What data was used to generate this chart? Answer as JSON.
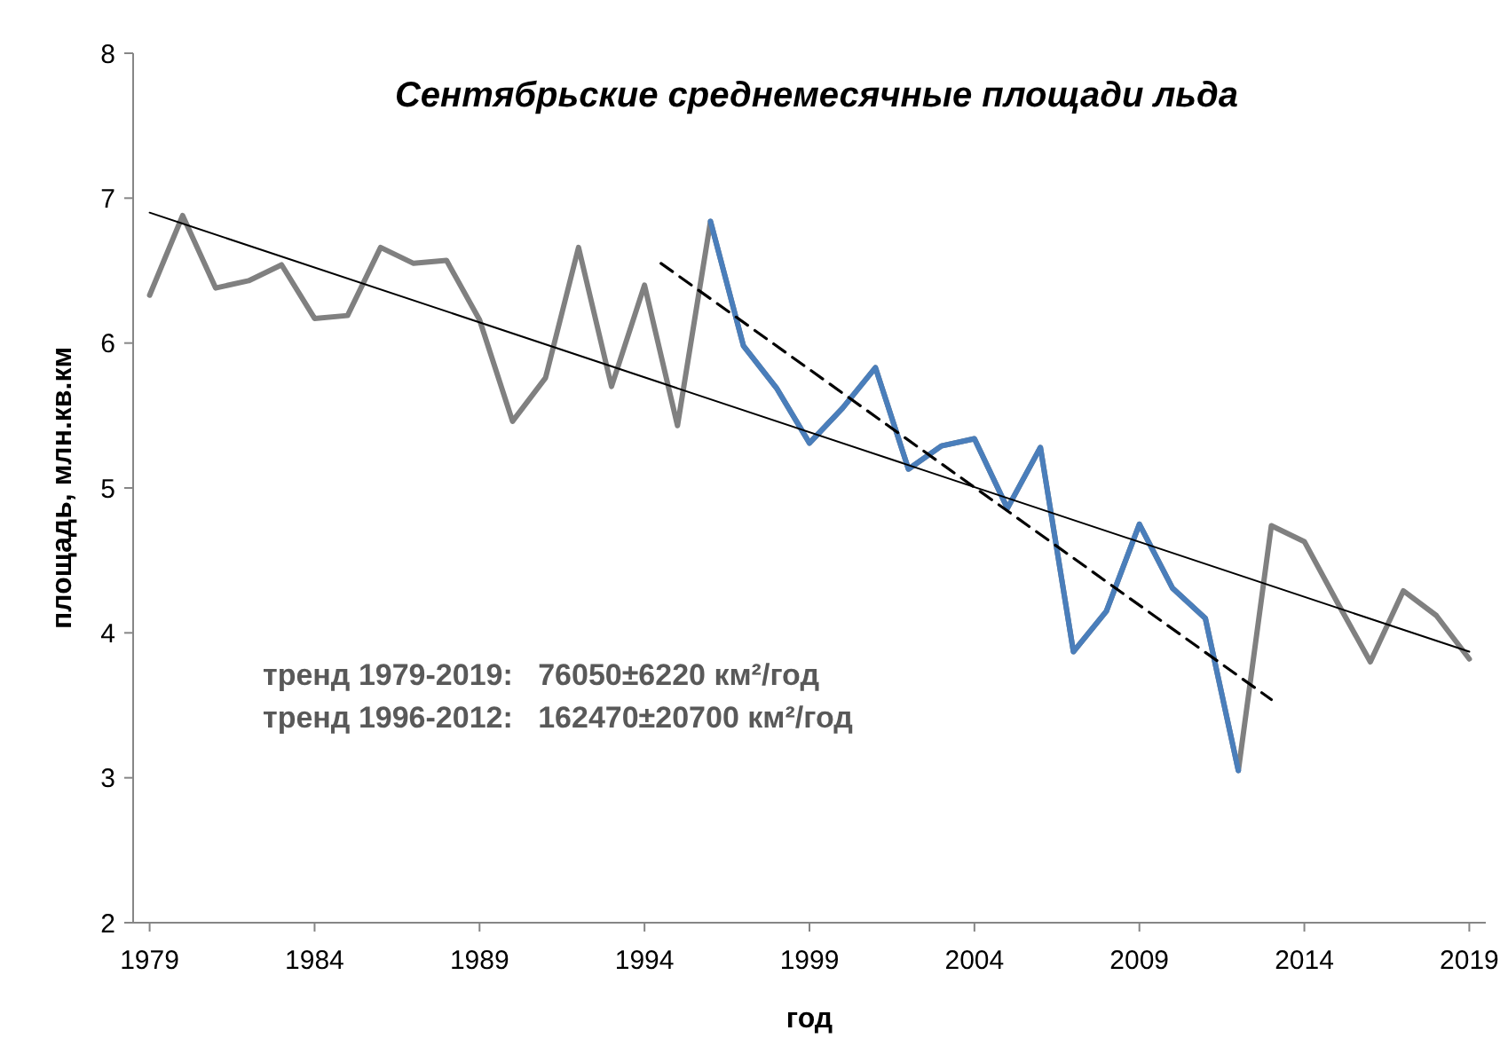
{
  "chart_data": {
    "type": "line",
    "title": "Сентябрьские среднемесячные площади льда",
    "xlabel": "год",
    "ylabel": "площадь, млн.кв.км",
    "x": [
      1979,
      1980,
      1981,
      1982,
      1983,
      1984,
      1985,
      1986,
      1987,
      1988,
      1989,
      1990,
      1991,
      1992,
      1993,
      1994,
      1995,
      1996,
      1997,
      1998,
      1999,
      2000,
      2001,
      2002,
      2003,
      2004,
      2005,
      2006,
      2007,
      2008,
      2009,
      2010,
      2011,
      2012,
      2013,
      2014,
      2015,
      2016,
      2017,
      2018,
      2019
    ],
    "series": [
      {
        "color": "#808080",
        "values": [
          6.33,
          6.88,
          6.38,
          6.43,
          6.54,
          6.17,
          6.19,
          6.66,
          6.55,
          6.57,
          6.16,
          5.46,
          5.76,
          6.66,
          5.7,
          6.4,
          5.43,
          6.84,
          5.98,
          5.69,
          5.31,
          5.55,
          5.83,
          5.13,
          5.29,
          5.34,
          4.86,
          5.28,
          3.87,
          4.15,
          4.75,
          4.31,
          4.1,
          3.05,
          4.74,
          4.63,
          4.21,
          3.8,
          4.29,
          4.12,
          3.82
        ]
      },
      {
        "color": "#4a7ebb",
        "x": [
          1996,
          1997,
          1998,
          1999,
          2000,
          2001,
          2002,
          2003,
          2004,
          2005,
          2006,
          2007,
          2008,
          2009,
          2010,
          2011,
          2012
        ],
        "values": [
          6.84,
          5.98,
          5.69,
          5.31,
          5.55,
          5.83,
          5.13,
          5.29,
          5.34,
          4.86,
          5.28,
          3.87,
          4.15,
          4.75,
          4.31,
          4.1,
          3.05
        ]
      },
      {
        "color": "#000000",
        "x": [
          1979,
          2019
        ],
        "values": [
          6.9,
          3.87
        ],
        "line_style": "solid"
      },
      {
        "color": "#000000",
        "x": [
          1994.5,
          2013
        ],
        "values": [
          6.55,
          3.54
        ],
        "line_style": "dashed"
      }
    ],
    "xlim": [
      1978.5,
      2019.5
    ],
    "xticks": [
      1979,
      1984,
      1989,
      1994,
      1999,
      2004,
      2009,
      2014,
      2019
    ],
    "ylim": [
      2,
      8
    ],
    "yticks": [
      2,
      3,
      4,
      5,
      6,
      7,
      8
    ],
    "annotations": [
      "тренд 1979-2019:   76050±6220 км²/год",
      "тренд 1996-2012:   162470±20700 км²/год"
    ],
    "marker": "none"
  }
}
